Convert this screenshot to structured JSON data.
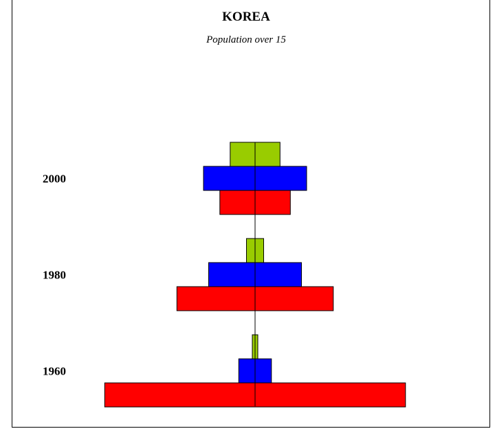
{
  "chart_data": {
    "type": "bar",
    "title": "KOREA",
    "subtitle": "Population over 15",
    "categories": [
      "2000",
      "1980",
      "1960"
    ],
    "series": [
      {
        "color": "#99cc00",
        "values": [
          1.45,
          0.5,
          0.16
        ]
      },
      {
        "color": "#0000ff",
        "values": [
          3.0,
          2.7,
          0.95
        ]
      },
      {
        "color": "#ff0000",
        "values": [
          2.05,
          4.55,
          8.75
        ]
      }
    ],
    "orientation": "horizontal-centered",
    "grid": false,
    "legend": "none"
  }
}
